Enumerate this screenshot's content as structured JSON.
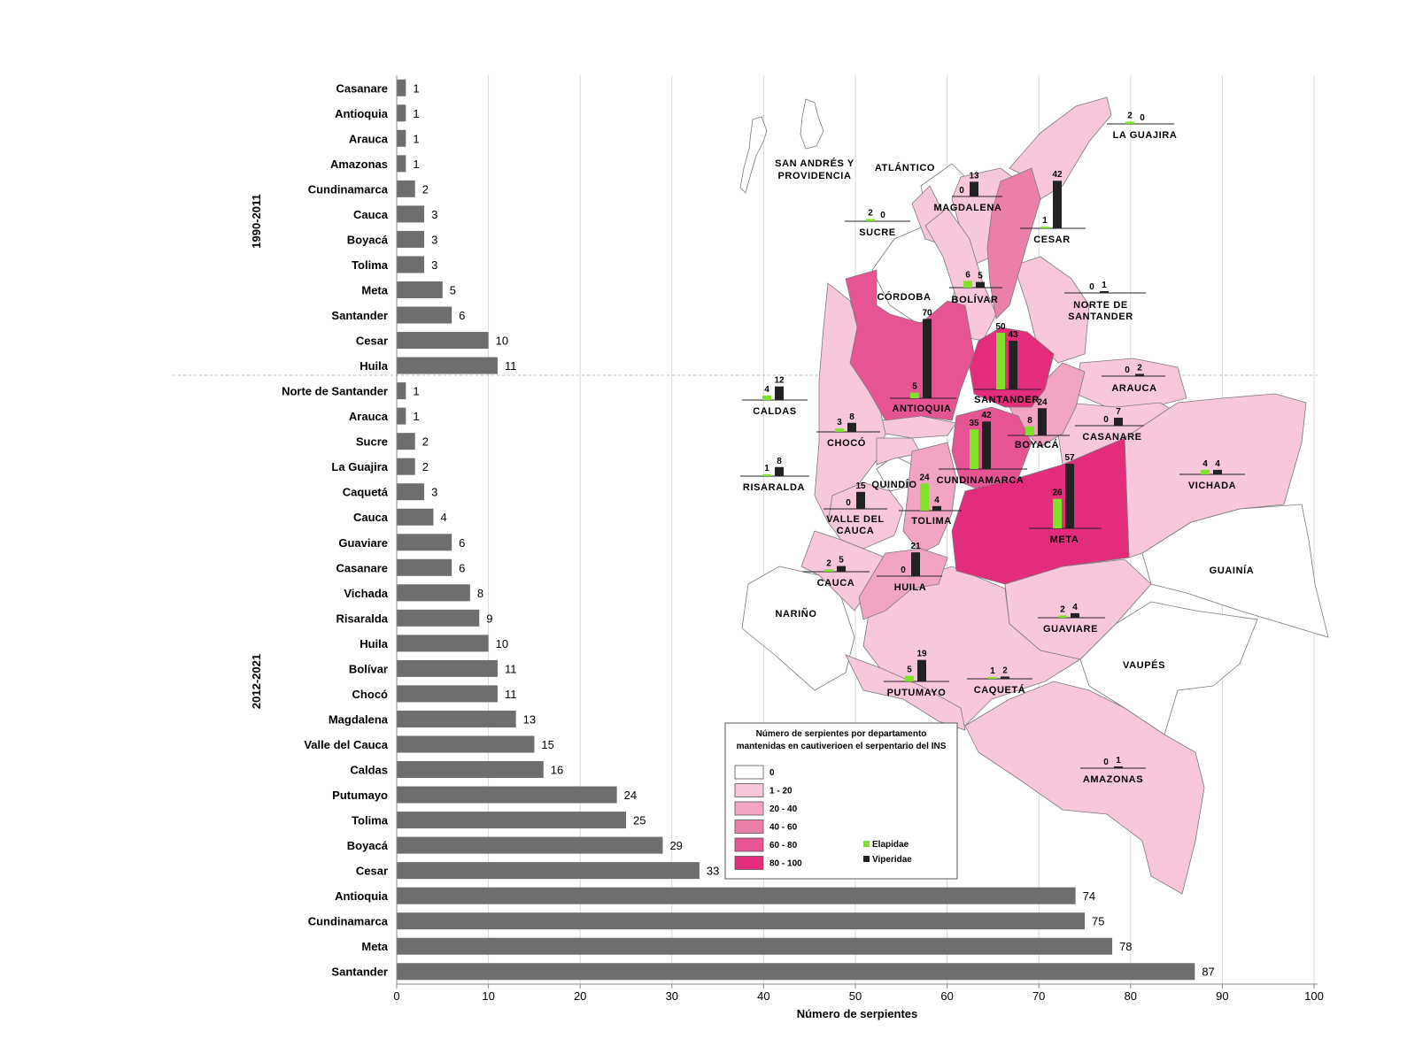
{
  "chart_data": {
    "type": "bar",
    "orientation": "horizontal",
    "xlabel": "Número de serpientes",
    "xlim": [
      0,
      100
    ],
    "xticks": [
      0,
      10,
      20,
      30,
      40,
      50,
      60,
      70,
      80,
      90,
      100
    ],
    "grid": "vertical",
    "bar_color": "#6e6e6e",
    "periods": [
      {
        "label": "1990-2011",
        "bars": [
          {
            "category": "Casanare",
            "value": 1
          },
          {
            "category": "Antioquia",
            "value": 1
          },
          {
            "category": "Arauca",
            "value": 1
          },
          {
            "category": "Amazonas",
            "value": 1
          },
          {
            "category": "Cundinamarca",
            "value": 2
          },
          {
            "category": "Cauca",
            "value": 3
          },
          {
            "category": "Boyacá",
            "value": 3
          },
          {
            "category": "Tolima",
            "value": 3
          },
          {
            "category": "Meta",
            "value": 5
          },
          {
            "category": "Santander",
            "value": 6
          },
          {
            "category": "Cesar",
            "value": 10
          },
          {
            "category": "Huila",
            "value": 11
          }
        ]
      },
      {
        "label": "2012-2021",
        "bars": [
          {
            "category": "Norte de Santander",
            "value": 1
          },
          {
            "category": "Arauca",
            "value": 1
          },
          {
            "category": "Sucre",
            "value": 2
          },
          {
            "category": "La Guajira",
            "value": 2
          },
          {
            "category": "Caquetá",
            "value": 3
          },
          {
            "category": "Cauca",
            "value": 4
          },
          {
            "category": "Guaviare",
            "value": 6
          },
          {
            "category": "Casanare",
            "value": 6
          },
          {
            "category": "Vichada",
            "value": 8
          },
          {
            "category": "Risaralda",
            "value": 9
          },
          {
            "category": "Huila",
            "value": 10
          },
          {
            "category": "Bolívar",
            "value": 11
          },
          {
            "category": "Chocó",
            "value": 11
          },
          {
            "category": "Magdalena",
            "value": 13
          },
          {
            "category": "Valle del Cauca",
            "value": 15
          },
          {
            "category": "Caldas",
            "value": 16
          },
          {
            "category": "Putumayo",
            "value": 24
          },
          {
            "category": "Tolima",
            "value": 25
          },
          {
            "category": "Boyacá",
            "value": 29
          },
          {
            "category": "Cesar",
            "value": 33
          },
          {
            "category": "Antioquia",
            "value": 74
          },
          {
            "category": "Cundinamarca",
            "value": 75
          },
          {
            "category": "Meta",
            "value": 78
          },
          {
            "category": "Santander",
            "value": 87
          }
        ]
      }
    ],
    "map": {
      "type": "choropleth with mini bar charts",
      "series_colors": {
        "Elapidae": "#7fe22a",
        "Viperidae": "#222222"
      },
      "legend": {
        "title_line1": "Número de serpientes por departamento",
        "title_line2": "mantenidas en cautiverioen el serpentario del INS",
        "classes": [
          {
            "label": "0",
            "color": "#ffffff"
          },
          {
            "label": "1 - 20",
            "color": "#f8c7dc"
          },
          {
            "label": "20 - 40",
            "color": "#f2a4c4"
          },
          {
            "label": "40 - 60",
            "color": "#ea7faa"
          },
          {
            "label": "60 - 80",
            "color": "#e65494"
          },
          {
            "label": "80 - 100",
            "color": "#e32c7c"
          }
        ],
        "series": [
          {
            "label": "Elapidae",
            "color": "#7fe22a"
          },
          {
            "label": "Viperidae",
            "color": "#222222"
          }
        ]
      },
      "departments_with_bars": [
        {
          "name": "LA GUAJIRA",
          "elapidae": 2,
          "viperidae": 0
        },
        {
          "name": "MAGDALENA",
          "elapidae": 0,
          "viperidae": 13
        },
        {
          "name": "CESAR",
          "elapidae": 1,
          "viperidae": 42
        },
        {
          "name": "SUCRE",
          "elapidae": 2,
          "viperidae": 0
        },
        {
          "name": "BOLÍVAR",
          "elapidae": 6,
          "viperidae": 5
        },
        {
          "name": "NORTE DE SANTANDER",
          "elapidae": 0,
          "viperidae": 1
        },
        {
          "name": "ANTIOQUIA",
          "elapidae": 5,
          "viperidae": 70
        },
        {
          "name": "SANTANDER",
          "elapidae": 50,
          "viperidae": 43
        },
        {
          "name": "ARAUCA",
          "elapidae": 0,
          "viperidae": 2
        },
        {
          "name": "CALDAS",
          "elapidae": 4,
          "viperidae": 12
        },
        {
          "name": "CHOCÓ",
          "elapidae": 3,
          "viperidae": 8
        },
        {
          "name": "BOYACÁ",
          "elapidae": 8,
          "viperidae": 24
        },
        {
          "name": "CASANARE",
          "elapidae": 0,
          "viperidae": 7
        },
        {
          "name": "CUNDINAMARCA",
          "elapidae": 35,
          "viperidae": 42
        },
        {
          "name": "RISARALDA",
          "elapidae": 1,
          "viperidae": 8
        },
        {
          "name": "VALLE DEL CAUCA",
          "elapidae": 0,
          "viperidae": 15
        },
        {
          "name": "TOLIMA",
          "elapidae": 24,
          "viperidae": 4
        },
        {
          "name": "META",
          "elapidae": 26,
          "viperidae": 57
        },
        {
          "name": "VICHADA",
          "elapidae": 4,
          "viperidae": 4
        },
        {
          "name": "CAUCA",
          "elapidae": 2,
          "viperidae": 5
        },
        {
          "name": "HUILA",
          "elapidae": 0,
          "viperidae": 21
        },
        {
          "name": "GUAVIARE",
          "elapidae": 2,
          "viperidae": 4
        },
        {
          "name": "PUTUMAYO",
          "elapidae": 5,
          "viperidae": 19
        },
        {
          "name": "CAQUETÁ",
          "elapidae": 1,
          "viperidae": 2
        },
        {
          "name": "AMAZONAS",
          "elapidae": 0,
          "viperidae": 1
        }
      ],
      "labels_only": [
        "SAN ANDRÉS Y",
        "PROVIDENCIA",
        "ATLÁNTICO",
        "CÓRDOBA",
        "QUINDÍO",
        "NARIÑO",
        "GUAINÍA",
        "VAUPÉS"
      ]
    }
  }
}
